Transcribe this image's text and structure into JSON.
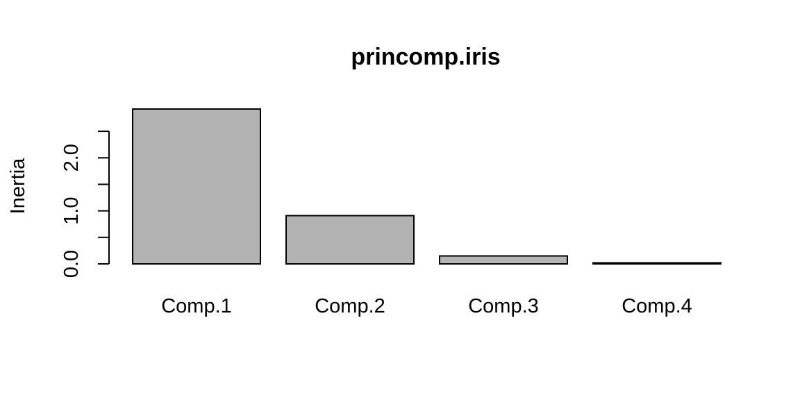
{
  "chart_data": {
    "type": "bar",
    "title": "princomp.iris",
    "xlabel": "",
    "ylabel": "Inertia",
    "categories": [
      "Comp.1",
      "Comp.2",
      "Comp.3",
      "Comp.4"
    ],
    "values": [
      2.92,
      0.91,
      0.15,
      0.02
    ],
    "ylim": [
      0,
      2.92
    ],
    "yticks": [
      0,
      0.5,
      1.0,
      1.5,
      2.0,
      2.5
    ],
    "ytick_labels": [
      "0.0",
      "1.0",
      "2.0"
    ],
    "bar_color": "#b3b3b3",
    "grid": false,
    "legend": "none"
  }
}
